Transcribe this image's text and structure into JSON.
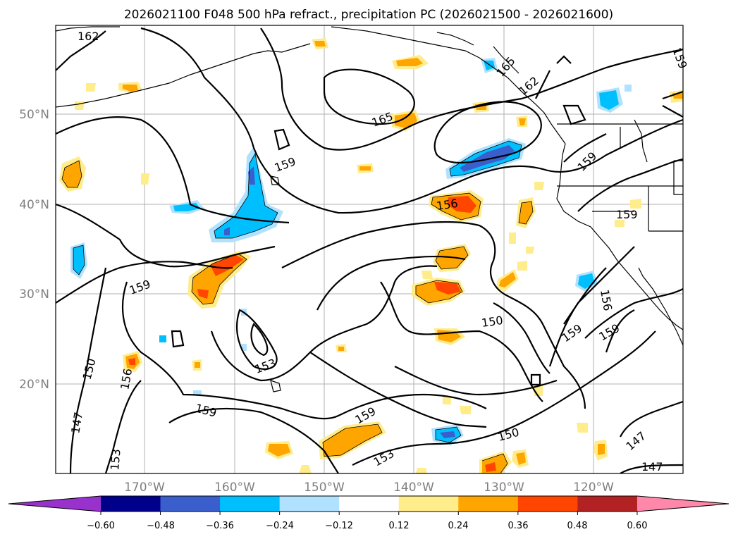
{
  "title": "2026021100 F048 500 hPa refract., precipitation PC (2026021500 - 2026021600)",
  "axes": {
    "lat_labels": [
      "20°N",
      "30°N",
      "40°N",
      "50°N"
    ],
    "lon_labels": [
      "170°W",
      "160°W",
      "150°W",
      "140°W",
      "130°W",
      "120°W"
    ]
  },
  "contour_labels": [
    "162",
    "165",
    "165",
    "162",
    "159",
    "159",
    "159",
    "159",
    "156",
    "159",
    "150",
    "156",
    "159",
    "159",
    "153",
    "150",
    "156",
    "147",
    "153",
    "159",
    "159",
    "153",
    "150",
    "147",
    "147"
  ],
  "colorbar": {
    "ticks": [
      "−0.60",
      "−0.48",
      "−0.36",
      "−0.24",
      "−0.12",
      "0.12",
      "0.24",
      "0.36",
      "0.48",
      "0.60"
    ],
    "colors": [
      "#9932cc",
      "#00008b",
      "#3a5fcd",
      "#00bfff",
      "#b0e2ff",
      "#ffffff",
      "#ffec8b",
      "#ffa500",
      "#ff4500",
      "#b22222",
      "#ff88aa"
    ]
  },
  "colors": {
    "pos_light": "#ffec8b",
    "pos_mid": "#ffa500",
    "pos_strong": "#ff4500",
    "neg_light": "#b0e2ff",
    "neg_mid": "#00bfff",
    "neg_strong": "#3a5fcd",
    "gridline": "#b0b0b0",
    "contour": "#000000"
  }
}
